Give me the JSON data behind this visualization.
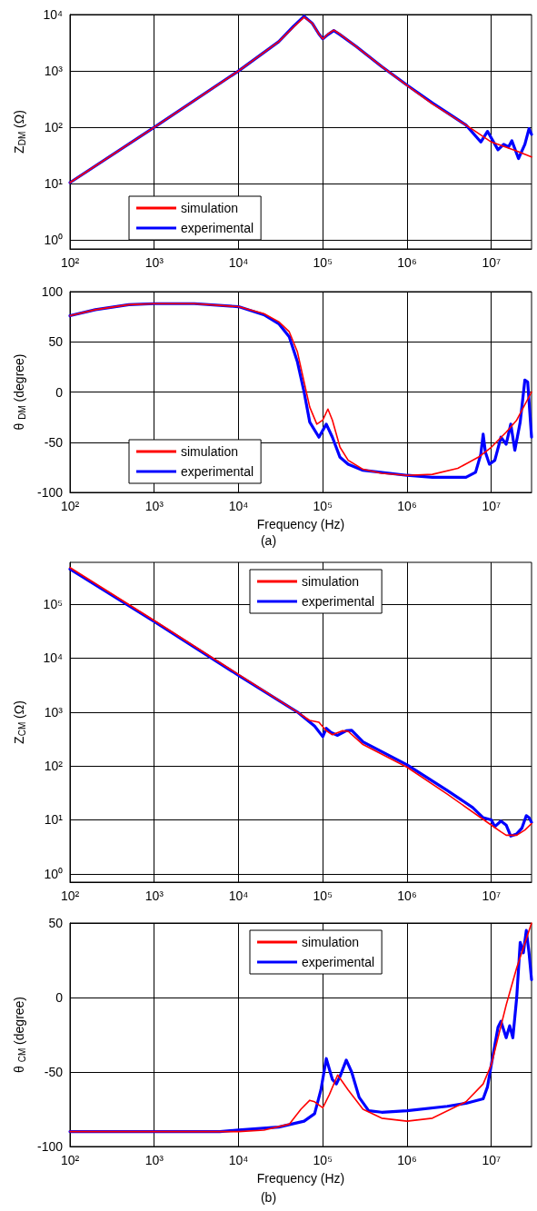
{
  "chart_data": [
    {
      "type": "line",
      "ylabel": "Z$_{DM}$ (Ω)",
      "log": "xy",
      "grid": true,
      "legend": "bottom left",
      "xlim": [
        100,
        30000000
      ],
      "ylim": [
        0.7,
        10000
      ],
      "xticks": [
        {
          "value": 100,
          "label": "10²"
        },
        {
          "value": 1000,
          "label": "10³"
        },
        {
          "value": 10000,
          "label": "10⁴"
        },
        {
          "value": 100000,
          "label": "10⁵"
        },
        {
          "value": 1000000,
          "label": "10⁶"
        },
        {
          "value": 10000000,
          "label": "10⁷"
        }
      ],
      "yticks": [
        {
          "value": 1,
          "label": "10⁰"
        },
        {
          "value": 10,
          "label": "10¹"
        },
        {
          "value": 100,
          "label": "10²"
        },
        {
          "value": 1000,
          "label": "10³"
        },
        {
          "value": 10000,
          "label": "10⁴"
        }
      ],
      "series": [
        {
          "name": "simulation",
          "color": "#ff0000",
          "x": [
            100,
            1000,
            10000,
            30000,
            45000,
            60000,
            75000,
            90000,
            100000,
            115000,
            135000,
            160000,
            250000,
            500000,
            1000000,
            2000000,
            5000000,
            10000000,
            20000000,
            30000000
          ],
          "values": [
            10.5,
            100,
            1000,
            3300,
            6000,
            9000,
            7000,
            4500,
            3700,
            4500,
            5300,
            4500,
            2700,
            1200,
            550,
            260,
            110,
            55,
            38,
            30
          ]
        },
        {
          "name": "experimental",
          "color": "#0000ff",
          "x": [
            100,
            1000,
            10000,
            30000,
            45000,
            60000,
            75000,
            90000,
            100000,
            115000,
            135000,
            160000,
            250000,
            500000,
            1000000,
            2000000,
            5000000,
            7500000,
            9000000,
            12000000,
            14000000,
            16000000,
            17500000,
            21000000,
            25000000,
            28000000,
            30000000
          ],
          "values": [
            10.5,
            100,
            1000,
            3300,
            6200,
            9300,
            7000,
            4500,
            3700,
            4400,
            5200,
            4400,
            2700,
            1200,
            560,
            270,
            110,
            55,
            85,
            40,
            50,
            45,
            58,
            28,
            50,
            95,
            75
          ]
        }
      ]
    },
    {
      "type": "line",
      "xlabel": "Frequency (Hz)",
      "ylabel": "θ $_{DM}$ (degree)",
      "log": "x",
      "grid": true,
      "legend": "bottom left",
      "xlim": [
        100,
        30000000
      ],
      "ylim": [
        -100,
        100
      ],
      "xticks": [
        {
          "value": 100,
          "label": "10²"
        },
        {
          "value": 1000,
          "label": "10³"
        },
        {
          "value": 10000,
          "label": "10⁴"
        },
        {
          "value": 100000,
          "label": "10⁵"
        },
        {
          "value": 1000000,
          "label": "10⁶"
        },
        {
          "value": 10000000,
          "label": "10⁷"
        }
      ],
      "yticks": [
        -100,
        -50,
        0,
        50,
        100
      ],
      "annotations": [
        "(a)"
      ],
      "series": [
        {
          "name": "simulation",
          "color": "#ff0000",
          "x": [
            100,
            200,
            500,
            1000,
            3000,
            10000,
            20000,
            30000,
            40000,
            50000,
            60000,
            70000,
            85000,
            100000,
            115000,
            130000,
            160000,
            200000,
            300000,
            500000,
            1000000,
            2000000,
            4000000,
            7000000,
            10000000,
            15000000,
            20000000,
            30000000
          ],
          "values": [
            76,
            82,
            87,
            88,
            88,
            85,
            78,
            70,
            60,
            40,
            10,
            -15,
            -32,
            -28,
            -17,
            -28,
            -55,
            -68,
            -77,
            -81,
            -83,
            -82,
            -76,
            -65,
            -55,
            -40,
            -28,
            0
          ]
        },
        {
          "name": "experimental",
          "color": "#0000ff",
          "x": [
            100,
            200,
            500,
            1000,
            3000,
            10000,
            20000,
            30000,
            40000,
            50000,
            60000,
            70000,
            90000,
            110000,
            130000,
            160000,
            200000,
            300000,
            1000000,
            2000000,
            5000000,
            6500000,
            7500000,
            8000000,
            8500000,
            9500000,
            11000000,
            13000000,
            15000000,
            17000000,
            19000000,
            22000000,
            25000000,
            27000000,
            30000000
          ],
          "values": [
            76,
            82,
            87,
            88,
            88,
            85,
            77,
            68,
            55,
            30,
            0,
            -30,
            -45,
            -32,
            -45,
            -65,
            -72,
            -78,
            -83,
            -85,
            -85,
            -80,
            -62,
            -42,
            -60,
            -72,
            -68,
            -45,
            -52,
            -32,
            -58,
            -30,
            12,
            10,
            -45
          ]
        }
      ]
    },
    {
      "type": "line",
      "ylabel": "Z$_{CM}$ (Ω)",
      "log": "xy",
      "grid": true,
      "legend": "top",
      "xlim": [
        100,
        30000000
      ],
      "ylim": [
        0.7,
        600000
      ],
      "xticks": [
        {
          "value": 100,
          "label": "10²"
        },
        {
          "value": 1000,
          "label": "10³"
        },
        {
          "value": 10000,
          "label": "10⁴"
        },
        {
          "value": 100000,
          "label": "10⁵"
        },
        {
          "value": 1000000,
          "label": "10⁶"
        },
        {
          "value": 10000000,
          "label": "10⁷"
        }
      ],
      "yticks": [
        {
          "value": 1,
          "label": "10⁰"
        },
        {
          "value": 10,
          "label": "10¹"
        },
        {
          "value": 100,
          "label": "10²"
        },
        {
          "value": 1000,
          "label": "10³"
        },
        {
          "value": 10000,
          "label": "10⁴"
        },
        {
          "value": 100000,
          "label": "10⁵"
        }
      ],
      "series": [
        {
          "name": "simulation",
          "color": "#ff0000",
          "x": [
            100,
            1000,
            10000,
            50000,
            70000,
            90000,
            110000,
            130000,
            170000,
            200000,
            300000,
            1000000,
            3000000,
            10000000,
            13000000,
            15000000,
            20000000,
            25000000,
            30000000
          ],
          "values": [
            480000,
            50000,
            5000,
            1000,
            700,
            650,
            450,
            380,
            450,
            440,
            250,
            95,
            30,
            8,
            6,
            5.2,
            5.2,
            6.5,
            8.5
          ]
        },
        {
          "name": "experimental",
          "color": "#0000ff",
          "x": [
            100,
            1000,
            10000,
            50000,
            80000,
            100000,
            110000,
            125000,
            150000,
            190000,
            220000,
            300000,
            1000000,
            3000000,
            6000000,
            8000000,
            10000000,
            11000000,
            13000000,
            15000000,
            17000000,
            20000000,
            23000000,
            26000000,
            28000000,
            30000000
          ],
          "values": [
            450000,
            48000,
            4800,
            1000,
            550,
            350,
            500,
            420,
            370,
            450,
            460,
            280,
            105,
            35,
            17,
            11,
            10,
            7.5,
            9.5,
            8,
            5,
            5.5,
            7,
            12,
            11,
            9
          ]
        }
      ]
    },
    {
      "type": "line",
      "xlabel": "Frequency (Hz)",
      "ylabel": "θ $_{CM}$ (degree)",
      "log": "x",
      "grid": true,
      "legend": "top",
      "xlim": [
        100,
        30000000
      ],
      "ylim": [
        -100,
        50
      ],
      "xticks": [
        {
          "value": 100,
          "label": "10²"
        },
        {
          "value": 1000,
          "label": "10³"
        },
        {
          "value": 10000,
          "label": "10⁴"
        },
        {
          "value": 100000,
          "label": "10⁵"
        },
        {
          "value": 1000000,
          "label": "10⁶"
        },
        {
          "value": 10000000,
          "label": "10⁷"
        }
      ],
      "yticks": [
        -100,
        -50,
        0,
        50
      ],
      "annotations": [
        "(b)"
      ],
      "series": [
        {
          "name": "simulation",
          "color": "#ff0000",
          "x": [
            100,
            10000,
            20000,
            40000,
            55000,
            70000,
            80000,
            100000,
            120000,
            150000,
            200000,
            300000,
            500000,
            1000000,
            2000000,
            5000000,
            8000000,
            10000000,
            15000000,
            20000000,
            30000000
          ],
          "values": [
            -90,
            -90,
            -89,
            -85,
            -75,
            -69,
            -70,
            -74,
            -65,
            -52,
            -62,
            -75,
            -81,
            -83,
            -81,
            -70,
            -58,
            -45,
            -5,
            20,
            50
          ]
        },
        {
          "name": "experimental",
          "color": "#0000ff",
          "x": [
            100,
            6000,
            10000,
            30000,
            60000,
            80000,
            95000,
            110000,
            130000,
            145000,
            160000,
            190000,
            220000,
            270000,
            350000,
            500000,
            1000000,
            3000000,
            5000000,
            8000000,
            9000000,
            10000000,
            12000000,
            13000000,
            15000000,
            16500000,
            18000000,
            20000000,
            22000000,
            24000000,
            26000000,
            28000000,
            30000000
          ],
          "values": [
            -90,
            -90,
            -89,
            -87,
            -83,
            -78,
            -62,
            -41,
            -55,
            -58,
            -53,
            -42,
            -50,
            -67,
            -76,
            -77,
            -76,
            -73,
            -71,
            -68,
            -60,
            -45,
            -20,
            -16,
            -27,
            -19,
            -27,
            0,
            37,
            30,
            45,
            30,
            12
          ]
        }
      ]
    }
  ]
}
